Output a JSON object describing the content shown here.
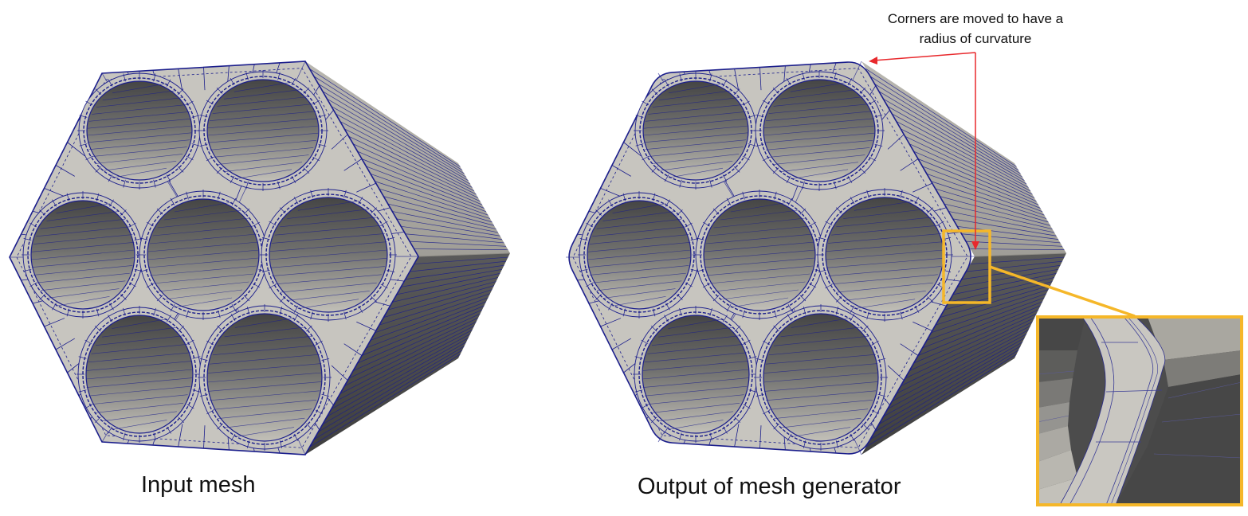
{
  "captions": {
    "input": "Input mesh",
    "output": "Output of mesh generator"
  },
  "annotation": {
    "line1": "Corners are moved to have a",
    "line2": "radius of curvature"
  },
  "colors": {
    "face": "#c7c5bf",
    "mesh_line": "#1b1e8c",
    "hole_dark": "#4a4a4a",
    "hole_light": "#b8b6ae",
    "side_dark": "#4b4b4b",
    "side_light": "#a8a69f",
    "arrow": "#e8282c",
    "highlight": "#f5b729"
  },
  "icons": [
    "zoom-inset",
    "annotation-arrow"
  ]
}
